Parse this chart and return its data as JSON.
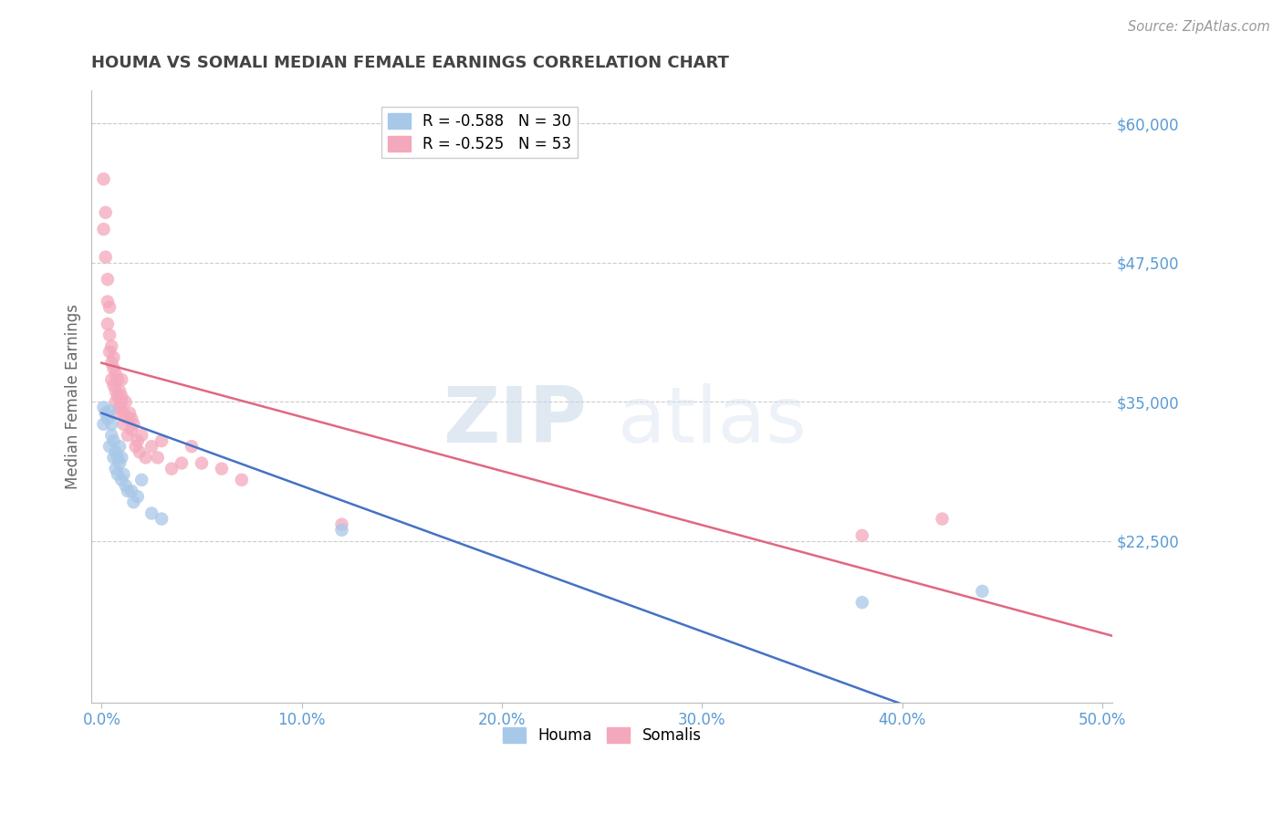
{
  "title": "HOUMA VS SOMALI MEDIAN FEMALE EARNINGS CORRELATION CHART",
  "source": "Source: ZipAtlas.com",
  "xlabel_ticks": [
    "0.0%",
    "10.0%",
    "20.0%",
    "30.0%",
    "40.0%",
    "50.0%"
  ],
  "xlabel_vals": [
    0.0,
    0.1,
    0.2,
    0.3,
    0.4,
    0.5
  ],
  "ylabel_ticks": [
    "$22,500",
    "$35,000",
    "$47,500",
    "$60,000"
  ],
  "ylabel_vals": [
    22500,
    35000,
    47500,
    60000
  ],
  "ylim": [
    8000,
    63000
  ],
  "xlim": [
    -0.005,
    0.505
  ],
  "ylabel": "Median Female Earnings",
  "legend_blue_label": "R = -0.588   N = 30",
  "legend_pink_label": "R = -0.525   N = 53",
  "legend_blue_color": "#a8c8e8",
  "legend_pink_color": "#f4a8bc",
  "scatter_blue_color": "#a8c8e8",
  "scatter_pink_color": "#f4a8bc",
  "line_blue_color": "#4472c4",
  "line_pink_color": "#e06880",
  "houma_x": [
    0.001,
    0.001,
    0.002,
    0.003,
    0.004,
    0.004,
    0.005,
    0.005,
    0.006,
    0.006,
    0.007,
    0.007,
    0.008,
    0.008,
    0.009,
    0.009,
    0.01,
    0.01,
    0.011,
    0.012,
    0.013,
    0.015,
    0.016,
    0.018,
    0.02,
    0.025,
    0.03,
    0.12,
    0.38,
    0.44
  ],
  "houma_y": [
    34500,
    33000,
    34000,
    33500,
    34200,
    31000,
    33000,
    32000,
    31500,
    30000,
    30500,
    29000,
    30000,
    28500,
    31000,
    29500,
    30000,
    28000,
    28500,
    27500,
    27000,
    27000,
    26000,
    26500,
    28000,
    25000,
    24500,
    23500,
    17000,
    18000
  ],
  "somali_x": [
    0.001,
    0.001,
    0.002,
    0.002,
    0.003,
    0.003,
    0.003,
    0.004,
    0.004,
    0.004,
    0.005,
    0.005,
    0.005,
    0.006,
    0.006,
    0.006,
    0.007,
    0.007,
    0.007,
    0.008,
    0.008,
    0.008,
    0.009,
    0.009,
    0.01,
    0.01,
    0.01,
    0.011,
    0.011,
    0.012,
    0.013,
    0.013,
    0.014,
    0.015,
    0.015,
    0.016,
    0.017,
    0.018,
    0.019,
    0.02,
    0.022,
    0.025,
    0.028,
    0.03,
    0.035,
    0.04,
    0.045,
    0.05,
    0.06,
    0.07,
    0.12,
    0.38,
    0.42
  ],
  "somali_y": [
    55000,
    50500,
    52000,
    48000,
    44000,
    46000,
    42000,
    43500,
    41000,
    39500,
    40000,
    38500,
    37000,
    39000,
    38000,
    36500,
    37500,
    36000,
    35000,
    37000,
    35500,
    34000,
    36000,
    34500,
    35500,
    37000,
    35000,
    34000,
    33000,
    35000,
    33500,
    32000,
    34000,
    33500,
    32500,
    33000,
    31000,
    31500,
    30500,
    32000,
    30000,
    31000,
    30000,
    31500,
    29000,
    29500,
    31000,
    29500,
    29000,
    28000,
    24000,
    23000,
    24500
  ],
  "watermark_zip": "ZIP",
  "watermark_atlas": "atlas",
  "background_color": "#ffffff",
  "grid_color": "#cccccc",
  "tick_color": "#5b9bd5",
  "title_color": "#444444",
  "axis_label_color": "#666666"
}
